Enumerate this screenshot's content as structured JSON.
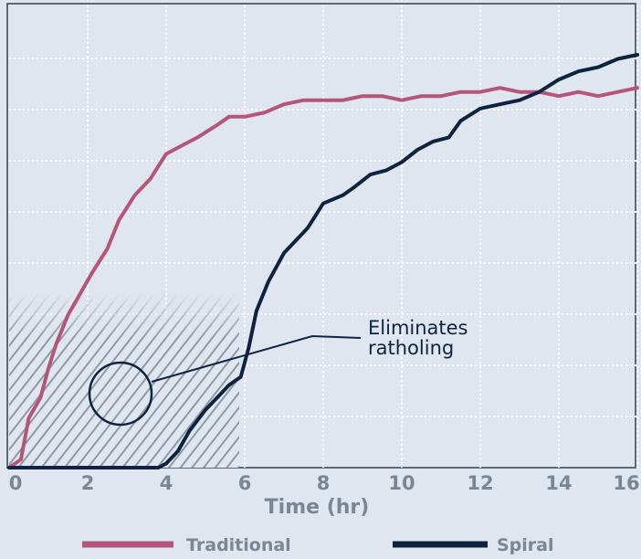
{
  "chart_data": {
    "type": "line",
    "xlabel": "Time (hr)",
    "ylabel": "",
    "title": "",
    "xlim": [
      0,
      16
    ],
    "ylim": [
      0,
      1
    ],
    "x_ticks": [
      "0",
      "2",
      "4",
      "6",
      "8",
      "10",
      "12",
      "14",
      "16"
    ],
    "grid": true,
    "legend_position": "bottom",
    "series": [
      {
        "name": "Traditional",
        "color": "#b5557a",
        "points": [
          [
            0,
            0.0
          ],
          [
            0.3,
            0.02
          ],
          [
            0.5,
            0.12
          ],
          [
            0.8,
            0.17
          ],
          [
            1.0,
            0.24
          ],
          [
            1.2,
            0.3
          ],
          [
            1.5,
            0.37
          ],
          [
            1.8,
            0.42
          ],
          [
            2.1,
            0.47
          ],
          [
            2.3,
            0.5
          ],
          [
            2.5,
            0.53
          ],
          [
            2.8,
            0.6
          ],
          [
            3.2,
            0.66
          ],
          [
            3.6,
            0.7
          ],
          [
            4.0,
            0.76
          ],
          [
            4.4,
            0.78
          ],
          [
            4.8,
            0.8
          ],
          [
            5.3,
            0.83
          ],
          [
            5.6,
            0.85
          ],
          [
            6.0,
            0.85
          ],
          [
            6.5,
            0.86
          ],
          [
            7.0,
            0.88
          ],
          [
            7.5,
            0.89
          ],
          [
            8.0,
            0.89
          ],
          [
            8.5,
            0.89
          ],
          [
            9.0,
            0.9
          ],
          [
            9.5,
            0.9
          ],
          [
            10.0,
            0.89
          ],
          [
            10.5,
            0.9
          ],
          [
            11.0,
            0.9
          ],
          [
            11.5,
            0.91
          ],
          [
            12.0,
            0.91
          ],
          [
            12.5,
            0.92
          ],
          [
            13.0,
            0.91
          ],
          [
            13.5,
            0.91
          ],
          [
            14.0,
            0.9
          ],
          [
            14.5,
            0.91
          ],
          [
            15.0,
            0.9
          ],
          [
            15.5,
            0.91
          ],
          [
            16.0,
            0.92
          ]
        ]
      },
      {
        "name": "Spiral",
        "color": "#0f2340",
        "points": [
          [
            0,
            0.0
          ],
          [
            3.8,
            0.0
          ],
          [
            4.0,
            0.01
          ],
          [
            4.3,
            0.04
          ],
          [
            4.6,
            0.09
          ],
          [
            5.0,
            0.14
          ],
          [
            5.3,
            0.17
          ],
          [
            5.6,
            0.2
          ],
          [
            5.9,
            0.22
          ],
          [
            6.1,
            0.29
          ],
          [
            6.3,
            0.38
          ],
          [
            6.6,
            0.45
          ],
          [
            7.0,
            0.52
          ],
          [
            7.3,
            0.55
          ],
          [
            7.6,
            0.58
          ],
          [
            7.8,
            0.61
          ],
          [
            8.0,
            0.64
          ],
          [
            8.5,
            0.66
          ],
          [
            8.8,
            0.68
          ],
          [
            9.2,
            0.71
          ],
          [
            9.6,
            0.72
          ],
          [
            10.0,
            0.74
          ],
          [
            10.4,
            0.77
          ],
          [
            10.8,
            0.79
          ],
          [
            11.2,
            0.8
          ],
          [
            11.5,
            0.84
          ],
          [
            12.0,
            0.87
          ],
          [
            12.5,
            0.88
          ],
          [
            13.0,
            0.89
          ],
          [
            13.5,
            0.91
          ],
          [
            14.0,
            0.94
          ],
          [
            14.5,
            0.96
          ],
          [
            15.0,
            0.97
          ],
          [
            15.5,
            0.99
          ],
          [
            16.0,
            1.0
          ]
        ]
      }
    ],
    "annotations": [
      {
        "text": "Eliminates ratholing",
        "x": 3.0,
        "y": 0.145
      }
    ]
  }
}
